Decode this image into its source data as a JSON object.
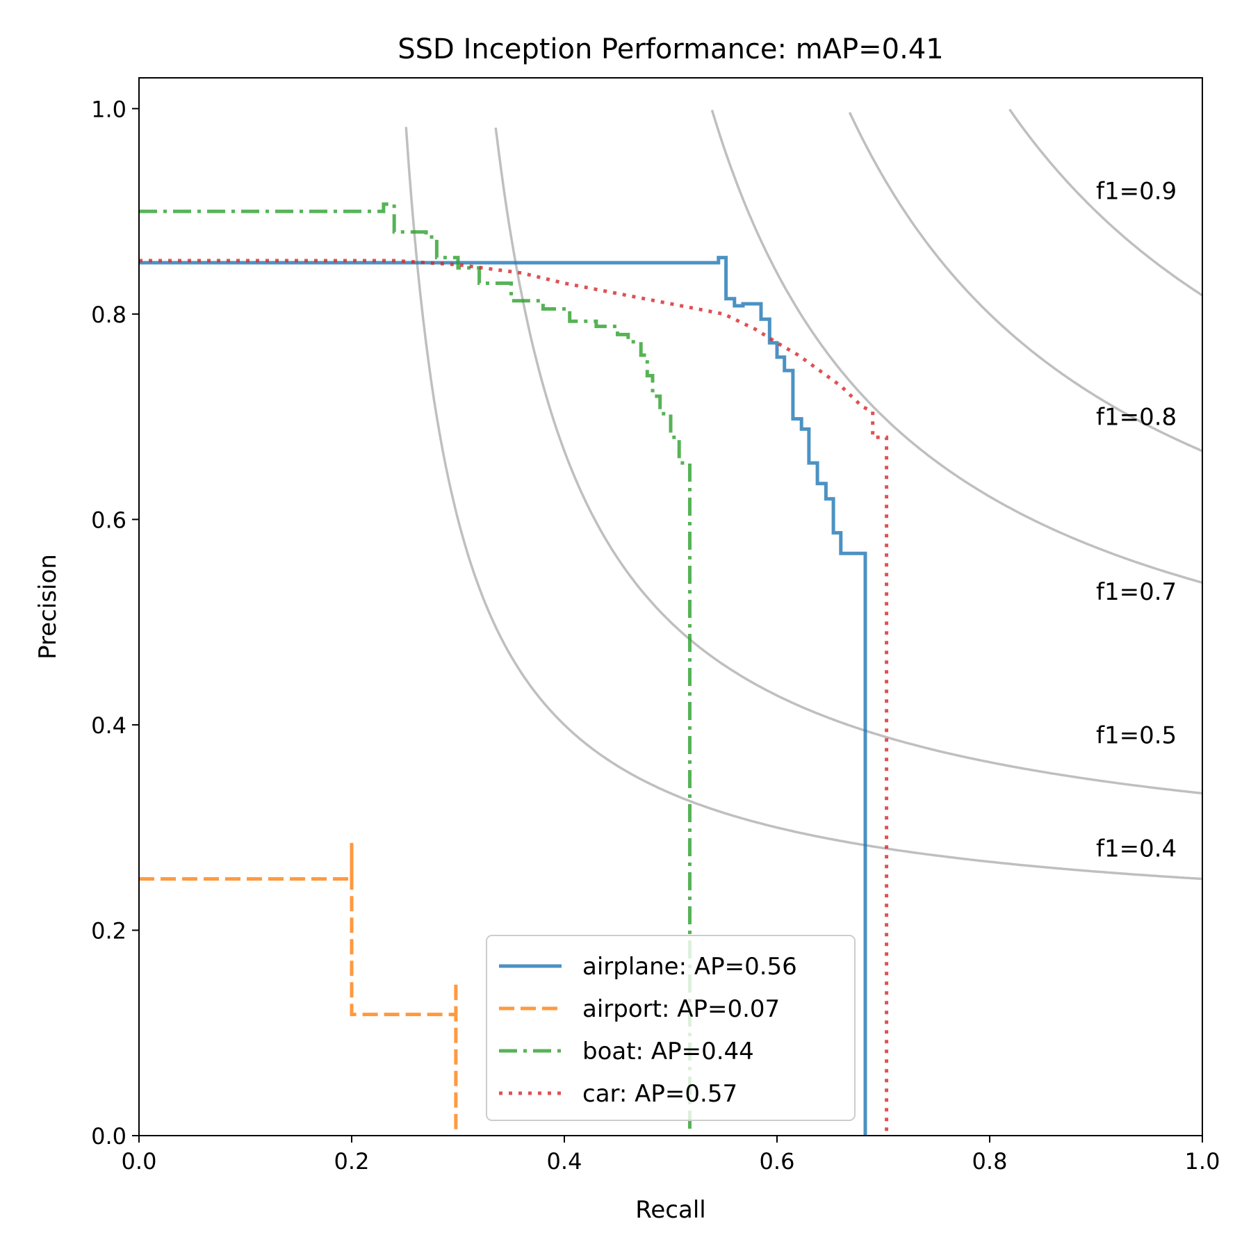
{
  "chart_data": {
    "type": "line",
    "title": "SSD Inception Performance:  mAP=0.41",
    "xlabel": "Recall",
    "ylabel": "Precision",
    "xlim": [
      0.0,
      1.0
    ],
    "ylim": [
      0.0,
      1.03
    ],
    "xticks": [
      "0.0",
      "0.2",
      "0.4",
      "0.6",
      "0.8",
      "1.0"
    ],
    "yticks": [
      "0.0",
      "0.2",
      "0.4",
      "0.6",
      "0.8",
      "1.0"
    ],
    "legend_position": "lower-center",
    "iso_f1": [
      {
        "f1": 0.4,
        "label": "f1=0.4",
        "label_y": 0.28
      },
      {
        "f1": 0.5,
        "label": "f1=0.5",
        "label_y": 0.39
      },
      {
        "f1": 0.7,
        "label": "f1=0.7",
        "label_y": 0.53
      },
      {
        "f1": 0.8,
        "label": "f1=0.8",
        "label_y": 0.7
      },
      {
        "f1": 0.9,
        "label": "f1=0.9",
        "label_y": 0.92
      }
    ],
    "series": [
      {
        "name": "airplane",
        "label": "airplane: AP=0.56",
        "color": "#1f77b4",
        "style": "solid",
        "points": [
          [
            0.0,
            0.85
          ],
          [
            0.545,
            0.85
          ],
          [
            0.545,
            0.855
          ],
          [
            0.552,
            0.855
          ],
          [
            0.552,
            0.815
          ],
          [
            0.56,
            0.815
          ],
          [
            0.56,
            0.808
          ],
          [
            0.568,
            0.808
          ],
          [
            0.568,
            0.81
          ],
          [
            0.585,
            0.81
          ],
          [
            0.585,
            0.795
          ],
          [
            0.593,
            0.795
          ],
          [
            0.593,
            0.772
          ],
          [
            0.6,
            0.772
          ],
          [
            0.6,
            0.758
          ],
          [
            0.607,
            0.758
          ],
          [
            0.607,
            0.745
          ],
          [
            0.615,
            0.745
          ],
          [
            0.615,
            0.698
          ],
          [
            0.623,
            0.698
          ],
          [
            0.623,
            0.688
          ],
          [
            0.63,
            0.688
          ],
          [
            0.63,
            0.655
          ],
          [
            0.638,
            0.655
          ],
          [
            0.638,
            0.635
          ],
          [
            0.646,
            0.635
          ],
          [
            0.646,
            0.62
          ],
          [
            0.653,
            0.62
          ],
          [
            0.653,
            0.587
          ],
          [
            0.66,
            0.587
          ],
          [
            0.66,
            0.567
          ],
          [
            0.683,
            0.567
          ],
          [
            0.683,
            0.0
          ]
        ]
      },
      {
        "name": "airport",
        "label": "airport: AP=0.07",
        "color": "#ff7f0e",
        "style": "dashed",
        "points": [
          [
            0.0,
            0.25
          ],
          [
            0.2,
            0.25
          ],
          [
            0.2,
            0.285
          ],
          [
            0.2,
            0.118
          ],
          [
            0.298,
            0.118
          ],
          [
            0.298,
            0.15
          ],
          [
            0.298,
            0.0
          ]
        ]
      },
      {
        "name": "boat",
        "label": "boat: AP=0.44",
        "color": "#2ca02c",
        "style": "dashdot",
        "points": [
          [
            0.0,
            0.9
          ],
          [
            0.23,
            0.9
          ],
          [
            0.23,
            0.907
          ],
          [
            0.24,
            0.907
          ],
          [
            0.24,
            0.88
          ],
          [
            0.27,
            0.88
          ],
          [
            0.27,
            0.875
          ],
          [
            0.28,
            0.875
          ],
          [
            0.28,
            0.855
          ],
          [
            0.3,
            0.855
          ],
          [
            0.3,
            0.845
          ],
          [
            0.32,
            0.845
          ],
          [
            0.32,
            0.83
          ],
          [
            0.35,
            0.83
          ],
          [
            0.35,
            0.813
          ],
          [
            0.38,
            0.813
          ],
          [
            0.38,
            0.805
          ],
          [
            0.405,
            0.805
          ],
          [
            0.405,
            0.793
          ],
          [
            0.43,
            0.793
          ],
          [
            0.43,
            0.788
          ],
          [
            0.45,
            0.788
          ],
          [
            0.45,
            0.78
          ],
          [
            0.46,
            0.78
          ],
          [
            0.46,
            0.773
          ],
          [
            0.472,
            0.773
          ],
          [
            0.472,
            0.76
          ],
          [
            0.478,
            0.76
          ],
          [
            0.478,
            0.74
          ],
          [
            0.483,
            0.74
          ],
          [
            0.483,
            0.72
          ],
          [
            0.49,
            0.72
          ],
          [
            0.49,
            0.703
          ],
          [
            0.5,
            0.703
          ],
          [
            0.5,
            0.68
          ],
          [
            0.508,
            0.68
          ],
          [
            0.508,
            0.655
          ],
          [
            0.518,
            0.655
          ],
          [
            0.518,
            0.0
          ]
        ]
      },
      {
        "name": "car",
        "label": "car: AP=0.57",
        "color": "#d62728",
        "style": "dotted",
        "points": [
          [
            0.0,
            0.852
          ],
          [
            0.15,
            0.852
          ],
          [
            0.24,
            0.852
          ],
          [
            0.3,
            0.848
          ],
          [
            0.36,
            0.84
          ],
          [
            0.4,
            0.83
          ],
          [
            0.45,
            0.82
          ],
          [
            0.5,
            0.81
          ],
          [
            0.55,
            0.8
          ],
          [
            0.58,
            0.785
          ],
          [
            0.6,
            0.772
          ],
          [
            0.62,
            0.76
          ],
          [
            0.64,
            0.745
          ],
          [
            0.66,
            0.73
          ],
          [
            0.68,
            0.71
          ],
          [
            0.69,
            0.705
          ],
          [
            0.69,
            0.68
          ],
          [
            0.703,
            0.68
          ],
          [
            0.703,
            0.0
          ]
        ]
      }
    ]
  }
}
